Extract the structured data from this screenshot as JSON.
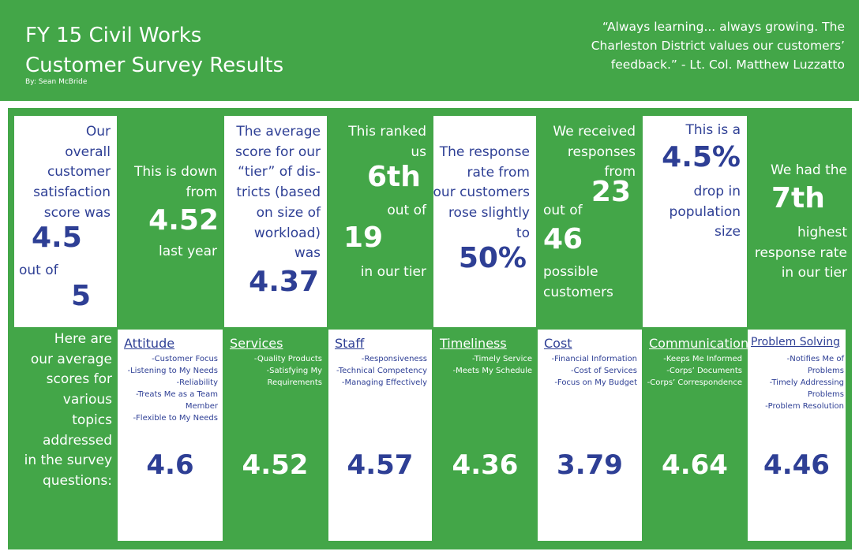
{
  "header": {
    "title_line1": "FY 15 Civil Works",
    "title_line2": "Customer Survey Results",
    "byline": "By: Sean McBride",
    "quote_line1": "“Always learning... always growing. The",
    "quote_line2": "Charleston District values our customers’",
    "quote_line3": "feedback.” - Lt. Col. Matthew Luzzatto"
  },
  "stats": {
    "satisfaction": {
      "lines": [
        "Our",
        "overall",
        "customer",
        "satisfaction",
        "score was"
      ],
      "value": "4.5",
      "out_of_label": "out of",
      "out_of_value": "5"
    },
    "down": {
      "lines": [
        "This is down",
        "from"
      ],
      "value": "4.52",
      "suffix": "last year"
    },
    "tier_average": {
      "lines": [
        "The average",
        "score for our",
        "“tier” of dis-",
        "tricts (based",
        "on size of",
        "workload)",
        "was"
      ],
      "value": "4.37"
    },
    "ranked": {
      "lines": [
        "This ranked",
        "us"
      ],
      "rank": "6th",
      "out_of_label": "out of",
      "out_of_value": "19",
      "suffix": "in our tier"
    },
    "response_rate": {
      "lines": [
        "The response",
        "rate from",
        "our customers",
        "rose slightly",
        "to"
      ],
      "value": "50%"
    },
    "responses": {
      "lines": [
        "We received",
        "responses",
        "from"
      ],
      "value": "23",
      "out_of_label": "out of",
      "out_of_value": "46",
      "suffix_line1": "possible",
      "suffix_line2": "customers"
    },
    "population": {
      "prefix": "This is a",
      "value": "4.5%",
      "lines": [
        "drop in",
        "population",
        "size"
      ]
    },
    "response_rank": {
      "prefix": "We had the",
      "value": "7th",
      "lines": [
        "highest",
        "response rate",
        "in our tier"
      ]
    }
  },
  "topics_intro": [
    "Here are",
    "our average",
    "scores for",
    "various",
    "topics",
    "addressed",
    "in the survey",
    "questions:"
  ],
  "topics": [
    {
      "name": "Attitude",
      "items": [
        "-Customer Focus",
        "-Listening to My Needs",
        "-Reliability",
        "-Treats Me as a Team",
        "Member",
        "-Flexible to My Needs"
      ],
      "score": "4.6"
    },
    {
      "name": "Services",
      "items": [
        "-Quality Products",
        "-Satisfying My",
        "Requirements"
      ],
      "score": "4.52"
    },
    {
      "name": "Staff",
      "items": [
        "-Responsiveness",
        "-Technical Competency",
        "-Managing Effectively"
      ],
      "score": "4.57"
    },
    {
      "name": "Timeliness",
      "items": [
        "-Timely Service",
        "-Meets My Schedule"
      ],
      "score": "4.36"
    },
    {
      "name": "Cost",
      "items": [
        "-Financial Information",
        "-Cost of Services",
        "-Focus on My Budget"
      ],
      "score": "3.79"
    },
    {
      "name": "Communication",
      "items": [
        "-Keeps Me Informed",
        "-Corps’ Documents",
        "-Corps’ Correspondence"
      ],
      "score": "4.64"
    },
    {
      "name": "Problem Solving",
      "items": [
        "-Notifies Me of",
        "Problems",
        "-Timely Addressing",
        "Problems",
        "-Problem Resolution"
      ],
      "score": "4.46"
    }
  ],
  "colors": {
    "green": "#43a648",
    "navy": "#2e3f95",
    "white": "#ffffff"
  }
}
